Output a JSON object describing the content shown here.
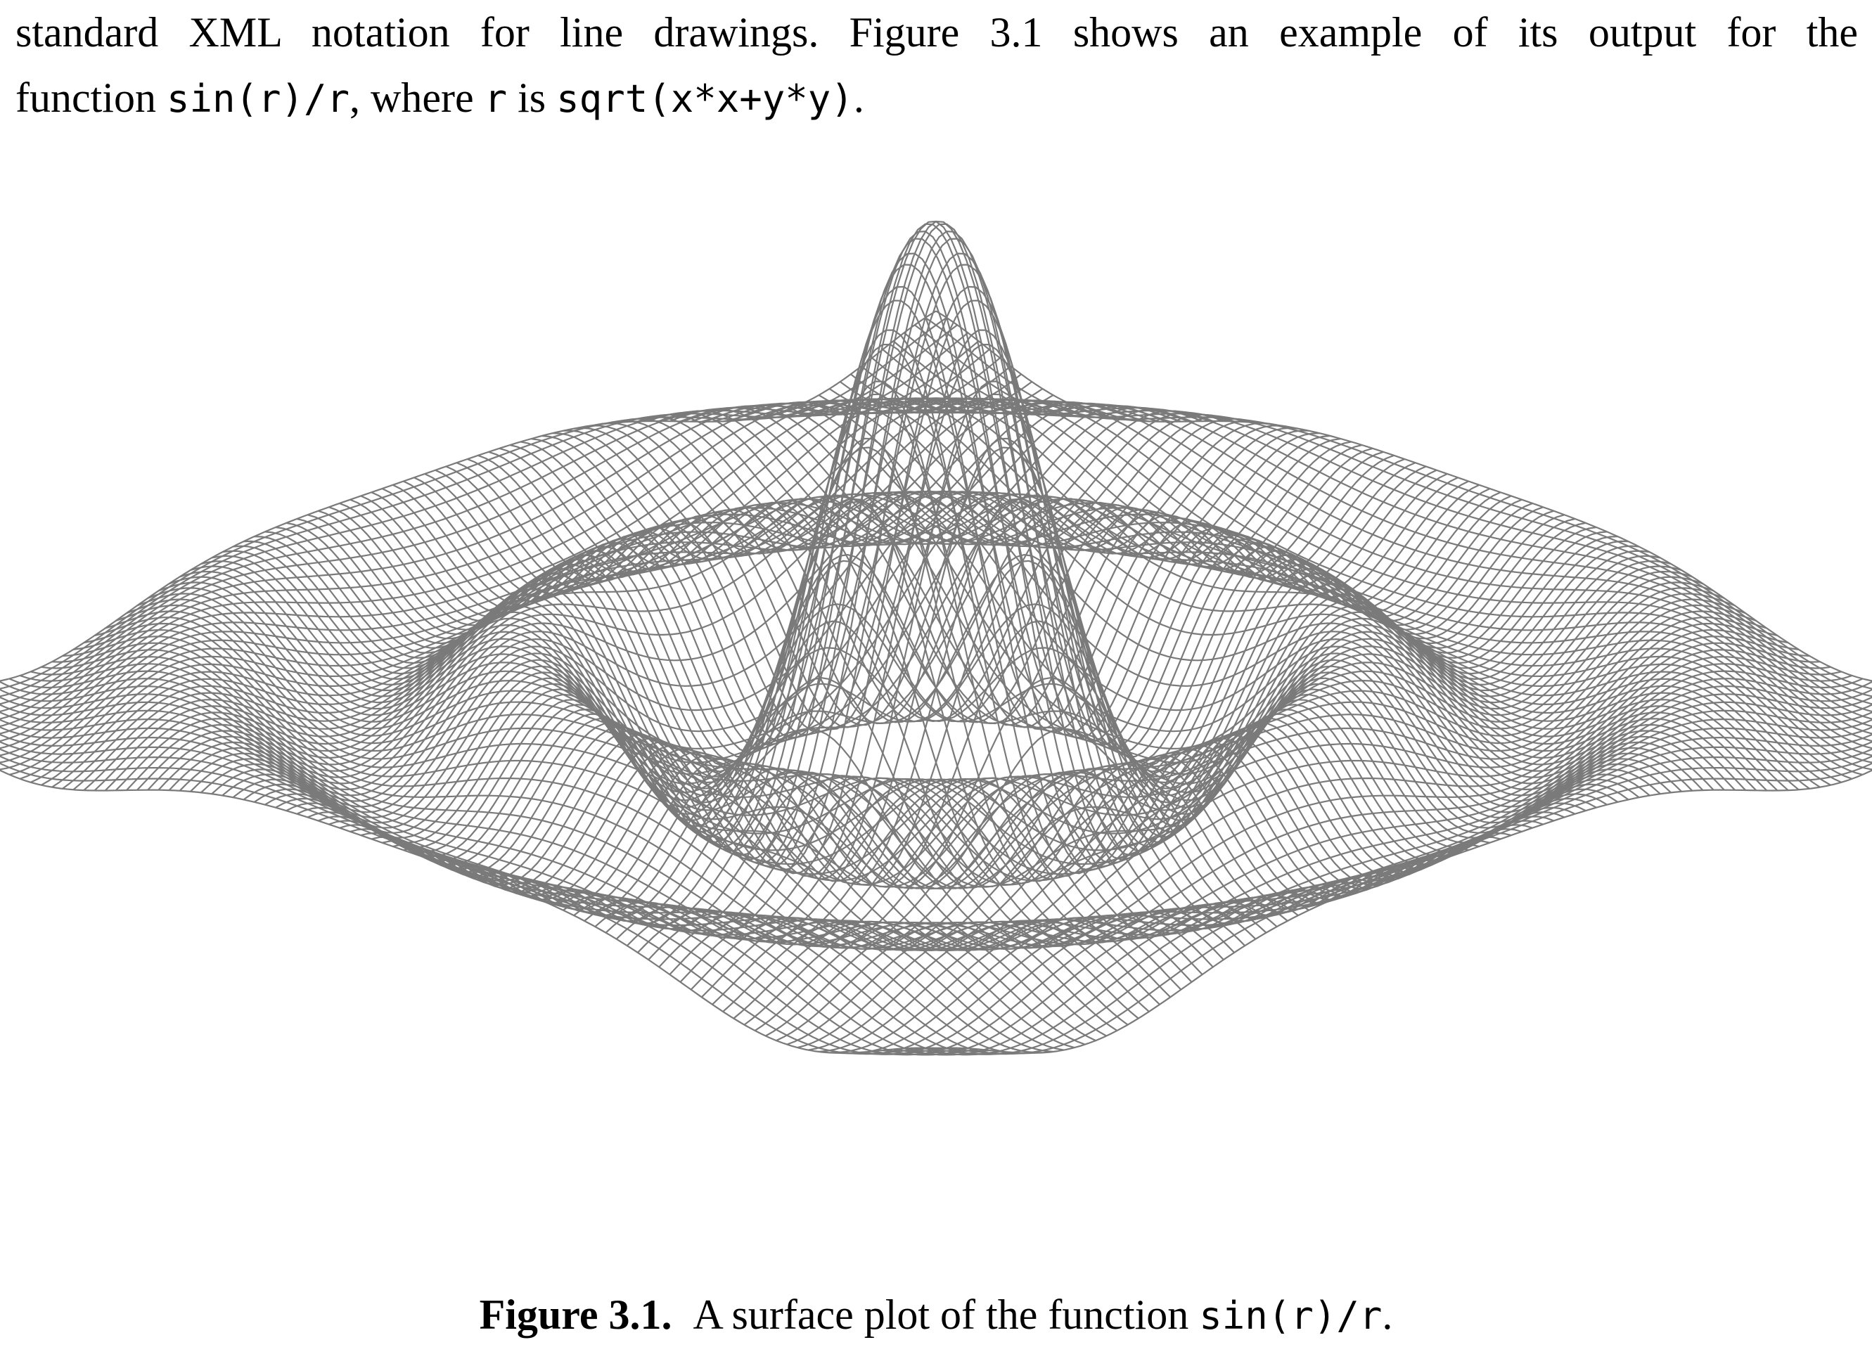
{
  "paragraph": {
    "line1": "standard XML notation for line drawings. Figure 3.1 shows an example of its output for the",
    "line2": {
      "t1": "function ",
      "c1": "sin(r)/r",
      "t2": ", where ",
      "c2": "r",
      "t3": " is ",
      "c3": "sqrt(x*x+y*y)",
      "t4": "."
    }
  },
  "figure": {
    "label": "Figure 3.1.",
    "caption_text": "A surface plot of the function ",
    "caption_code": "sin(r)/r",
    "caption_end": ".",
    "line_color": "#7a7a7a",
    "function": "sin(r)/r"
  }
}
